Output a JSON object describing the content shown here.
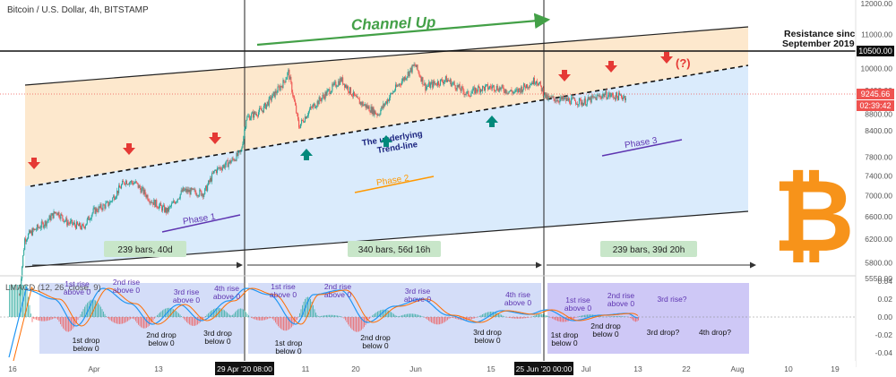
{
  "header": {
    "symbol_line": "Bitcoin / U.S. Dollar, 4h, BITSTAMP"
  },
  "annotations": {
    "channel_title": "Channel Up",
    "resistance_line1": "Resistance since",
    "resistance_line2": "September 2019",
    "trendline_line1": "The underlying",
    "trendline_line2": "Trend-line",
    "phase1": "Phase 1",
    "phase2": "Phase 2",
    "phase3": "Phase 3",
    "question": "(?)",
    "bars1": "239 bars, 40d",
    "bars2": "340 bars, 56d 16h",
    "bars3": "239 bars, 39d 20h",
    "date_marker1": "29 Apr '20  08:00",
    "date_marker2": "25 Jun '20  00:00"
  },
  "macd_labels": {
    "indicator": "LMACD (12, 26, close, 9)",
    "rise1_p1": "1st rise\nabove 0",
    "rise2_p1": "2nd rise\nabove 0",
    "rise3_p1": "3rd rise\nabove 0",
    "rise4_p1": "4th rise\nabove 0",
    "drop1_p1": "1st drop\nbelow 0",
    "drop2_p1": "2nd drop\nbelow 0",
    "drop3_p1": "3rd drop\nbelow 0",
    "rise1_p2": "1st rise\nabove 0",
    "rise2_p2": "2nd rise\nabove 0",
    "rise3_p2": "3rd rise\nabove 0",
    "rise4_p2": "4th rise\nabove 0",
    "drop1_p2": "1st drop\nbelow 0",
    "drop2_p2": "2nd drop\nbelow 0",
    "drop3_p2": "3rd drop\nbelow 0",
    "rise1_p3": "1st rise\nabove 0",
    "rise2_p3": "2nd rise\nabove 0",
    "rise3_p3": "3rd rise?",
    "drop1_p3": "1st drop\nbelow 0",
    "drop2_p3": "2nd drop\nbelow 0",
    "drop3_p3": "3rd drop?",
    "drop4_p3": "4th drop?"
  },
  "price_labels": {
    "resistance_value": "10500.00",
    "current_price": "9245.66",
    "countdown": "02:39:42"
  },
  "colors": {
    "bull": "#26a69a",
    "bear": "#ef5350",
    "channel_top_fill": "#fde4c4",
    "channel_bottom_fill": "#d3e7fb",
    "macd_box": "#cfd9f7",
    "macd_box_p3": "#c9c2f5",
    "green_text": "#43a047",
    "purple": "#5e35b1",
    "orange": "#ff9800",
    "bitcoin": "#f7931a",
    "red_arrow": "#e53935",
    "teal_arrow": "#00897b"
  },
  "icons": {
    "bitcoin_logo": "bitcoin-logo",
    "up_arrow": "up-arrow-icon",
    "down_arrow": "down-arrow-icon"
  },
  "chart_data": {
    "type": "candlestick",
    "title": "Bitcoin / U.S. Dollar, 4h, BITSTAMP",
    "y_axis": {
      "scale": "log",
      "ticks": [
        12000,
        11000,
        10000,
        9400,
        8800,
        8400,
        7800,
        7400,
        7000,
        6600,
        6200,
        5800,
        5550
      ],
      "tick_labels": [
        "12000.00",
        "11000.00",
        "10000.00",
        "9400.00",
        "8800.00",
        "8400.00",
        "7800.00",
        "7400.00",
        "7000.00",
        "6600.00",
        "6200.00",
        "5800.00",
        "5550.00"
      ]
    },
    "x_axis": {
      "tick_labels": [
        "16",
        "Apr",
        "13",
        "29 Apr '20  08:00",
        "11",
        "20",
        "Jun",
        "15",
        "25 Jun '20  00:00",
        "Jul",
        "13",
        "22",
        "Aug",
        "10",
        "19"
      ]
    },
    "price_path": [
      [
        "2020-03-18",
        5300
      ],
      [
        "2020-03-19",
        6200
      ],
      [
        "2020-03-20",
        6300
      ],
      [
        "2020-03-23",
        6500
      ],
      [
        "2020-03-25",
        6700
      ],
      [
        "2020-03-27",
        6500
      ],
      [
        "2020-03-30",
        6400
      ],
      [
        "2020-04-01",
        6700
      ],
      [
        "2020-04-04",
        6850
      ],
      [
        "2020-04-07",
        7300
      ],
      [
        "2020-04-09",
        7250
      ],
      [
        "2020-04-12",
        6900
      ],
      [
        "2020-04-15",
        6700
      ],
      [
        "2020-04-18",
        7100
      ],
      [
        "2020-04-22",
        7050
      ],
      [
        "2020-04-24",
        7500
      ],
      [
        "2020-04-27",
        7700
      ],
      [
        "2020-04-29",
        7900
      ],
      [
        "2020-04-30",
        8700
      ],
      [
        "2020-05-03",
        8900
      ],
      [
        "2020-05-07",
        9600
      ],
      [
        "2020-05-08",
        9900
      ],
      [
        "2020-05-10",
        8500
      ],
      [
        "2020-05-12",
        8900
      ],
      [
        "2020-05-15",
        9300
      ],
      [
        "2020-05-18",
        9700
      ],
      [
        "2020-05-21",
        9150
      ],
      [
        "2020-05-25",
        8800
      ],
      [
        "2020-05-28",
        9400
      ],
      [
        "2020-06-01",
        10100
      ],
      [
        "2020-06-03",
        9500
      ],
      [
        "2020-06-07",
        9700
      ],
      [
        "2020-06-11",
        9300
      ],
      [
        "2020-06-13",
        9450
      ],
      [
        "2020-06-16",
        9500
      ],
      [
        "2020-06-20",
        9350
      ],
      [
        "2020-06-24",
        9700
      ],
      [
        "2020-06-26",
        9200
      ],
      [
        "2020-06-30",
        9150
      ],
      [
        "2020-07-03",
        9100
      ],
      [
        "2020-07-07",
        9300
      ],
      [
        "2020-07-09",
        9250
      ],
      [
        "2020-07-11",
        9245.66
      ]
    ],
    "current_price": 9245.66,
    "resistance": 10500,
    "macd_y_axis": {
      "ticks": [
        0.04,
        0.02,
        0.0,
        -0.02,
        -0.04
      ],
      "tick_labels": [
        "0.04",
        "0.02",
        "0.00",
        "-0.02",
        "-0.04"
      ]
    },
    "legend": "none",
    "grid": false
  }
}
